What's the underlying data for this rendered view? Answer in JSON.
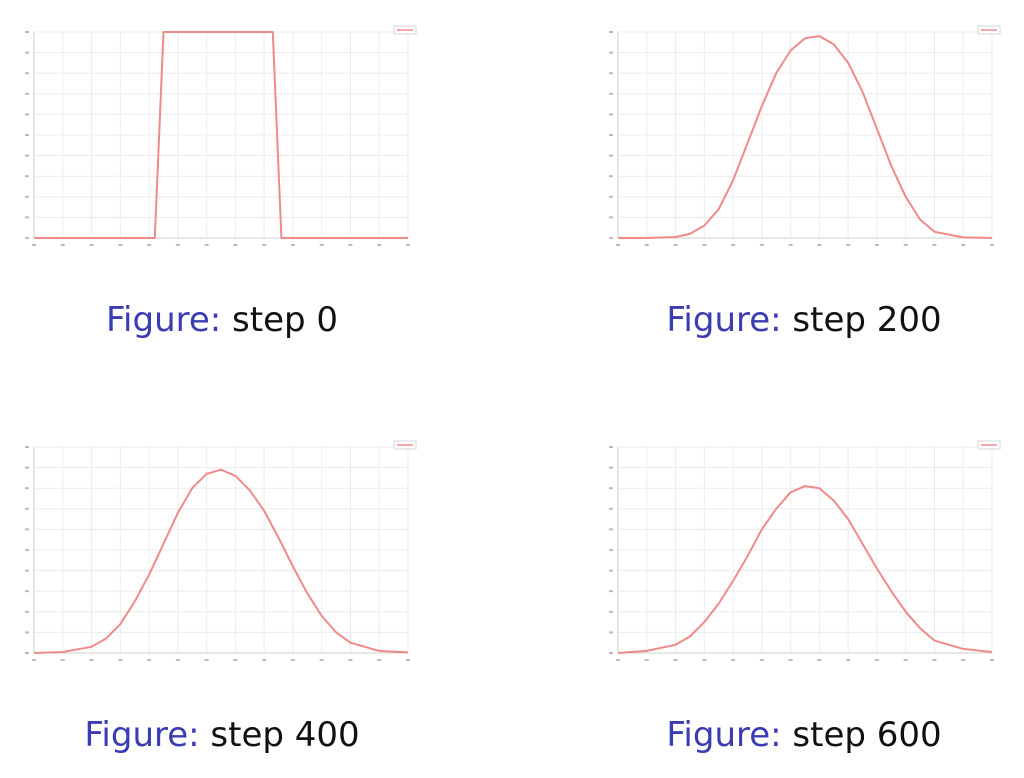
{
  "caption_prefix": "Figure:",
  "colors": {
    "line": "#f08a8a",
    "grid": "#ececec",
    "axis": "#cfcfcf",
    "caption_prefix": "#3b3bb3"
  },
  "chart_data": [
    {
      "type": "line",
      "caption": "step 0",
      "xlim": [
        0,
        130
      ],
      "ylim": [
        0,
        1.0
      ],
      "grid": true,
      "legend": "top-right",
      "series": [
        {
          "x": [
            0,
            42,
            45,
            83,
            86,
            130
          ],
          "y": [
            0,
            0,
            1,
            1,
            0,
            0
          ]
        }
      ]
    },
    {
      "type": "line",
      "caption": "step 200",
      "xlim": [
        0,
        130
      ],
      "ylim": [
        0,
        1.0
      ],
      "grid": true,
      "legend": "top-right",
      "series": [
        {
          "x": [
            0,
            10,
            20,
            25,
            30,
            35,
            40,
            45,
            50,
            55,
            60,
            65,
            70,
            75,
            80,
            85,
            90,
            95,
            100,
            105,
            110,
            120,
            130
          ],
          "y": [
            0,
            0,
            0.005,
            0.02,
            0.06,
            0.14,
            0.28,
            0.46,
            0.64,
            0.8,
            0.91,
            0.97,
            0.98,
            0.94,
            0.85,
            0.71,
            0.53,
            0.35,
            0.2,
            0.09,
            0.03,
            0.003,
            0
          ]
        }
      ]
    },
    {
      "type": "line",
      "caption": "step 400",
      "xlim": [
        0,
        130
      ],
      "ylim": [
        0,
        1.0
      ],
      "grid": true,
      "legend": "top-right",
      "series": [
        {
          "x": [
            0,
            10,
            20,
            25,
            30,
            35,
            40,
            45,
            50,
            55,
            60,
            65,
            70,
            75,
            80,
            85,
            90,
            95,
            100,
            105,
            110,
            120,
            130
          ],
          "y": [
            0,
            0.005,
            0.03,
            0.07,
            0.14,
            0.25,
            0.38,
            0.53,
            0.68,
            0.8,
            0.87,
            0.89,
            0.86,
            0.79,
            0.69,
            0.56,
            0.42,
            0.29,
            0.18,
            0.1,
            0.05,
            0.01,
            0.003
          ]
        }
      ]
    },
    {
      "type": "line",
      "caption": "step 600",
      "xlim": [
        0,
        130
      ],
      "ylim": [
        0,
        1.0
      ],
      "grid": true,
      "legend": "top-right",
      "series": [
        {
          "x": [
            0,
            10,
            20,
            25,
            30,
            35,
            40,
            45,
            50,
            55,
            60,
            65,
            70,
            75,
            80,
            85,
            90,
            95,
            100,
            105,
            110,
            120,
            130
          ],
          "y": [
            0,
            0.01,
            0.04,
            0.08,
            0.15,
            0.24,
            0.35,
            0.47,
            0.6,
            0.7,
            0.78,
            0.81,
            0.8,
            0.74,
            0.65,
            0.53,
            0.41,
            0.3,
            0.2,
            0.12,
            0.06,
            0.02,
            0.005
          ]
        }
      ]
    }
  ]
}
